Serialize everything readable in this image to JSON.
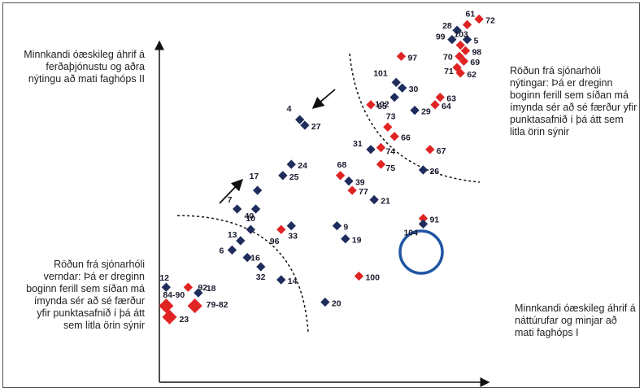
{
  "chart_data": {
    "type": "scatter",
    "annotations": {
      "top_left": "Minnkandi óæskileg áhrif á ferðaþjónustu og aðra nýtingu að mati faghóps II",
      "top_right": "Röðun frá sjónarhóli nýtingar: Þá er dreginn boginn ferill sem síðan má ímynda sér að sé færður yfir punktasafnið í þá átt sem litla örin sýnir",
      "bottom_left": "Röðun frá sjónarhóli verndar: Þá er dreginn boginn ferill sem síðan má ímynda sér að sé færður yfir punktasafnið í þá átt sem litla örin sýnir",
      "bottom_right": "Minnkandi óæskileg áhrif á náttúrufar og minjar að mati faghóps I"
    },
    "series_colors": {
      "blue": "#1f2d5c",
      "red": "#e02424"
    },
    "points": [
      {
        "label": "72",
        "color": "red",
        "x": 0.945,
        "y": 0.975
      },
      {
        "label": "61",
        "color": "red",
        "x": 0.91,
        "y": 0.96
      },
      {
        "label": "28",
        "color": "blue",
        "x": 0.88,
        "y": 0.945
      },
      {
        "label": "5",
        "color": "blue",
        "x": 0.91,
        "y": 0.92
      },
      {
        "label": "99",
        "color": "blue",
        "x": 0.865,
        "y": 0.92
      },
      {
        "label": "103",
        "color": "red",
        "x": 0.89,
        "y": 0.905
      },
      {
        "label": "98",
        "color": "red",
        "x": 0.905,
        "y": 0.89
      },
      {
        "label": "97",
        "color": "red",
        "x": 0.715,
        "y": 0.875
      },
      {
        "label": "70",
        "color": "red",
        "x": 0.887,
        "y": 0.875
      },
      {
        "label": "69",
        "color": "red",
        "x": 0.9,
        "y": 0.862
      },
      {
        "label": "71",
        "color": "red",
        "x": 0.88,
        "y": 0.845
      },
      {
        "label": "62",
        "color": "red",
        "x": 0.89,
        "y": 0.83
      },
      {
        "label": "101",
        "color": "blue",
        "x": 0.7,
        "y": 0.805
      },
      {
        "label": "30",
        "color": "blue",
        "x": 0.718,
        "y": 0.79
      },
      {
        "label": "102",
        "color": "blue",
        "x": 0.695,
        "y": 0.765
      },
      {
        "label": "63",
        "color": "red",
        "x": 0.83,
        "y": 0.765
      },
      {
        "label": "65",
        "color": "red",
        "x": 0.625,
        "y": 0.745
      },
      {
        "label": "64",
        "color": "red",
        "x": 0.815,
        "y": 0.745
      },
      {
        "label": "29",
        "color": "blue",
        "x": 0.755,
        "y": 0.73
      },
      {
        "label": "4",
        "color": "blue",
        "x": 0.415,
        "y": 0.705
      },
      {
        "label": "27",
        "color": "blue",
        "x": 0.43,
        "y": 0.69
      },
      {
        "label": "73",
        "color": "red",
        "x": 0.675,
        "y": 0.685
      },
      {
        "label": "66",
        "color": "red",
        "x": 0.695,
        "y": 0.66
      },
      {
        "label": "31",
        "color": "blue",
        "x": 0.625,
        "y": 0.625
      },
      {
        "label": "74",
        "color": "red",
        "x": 0.655,
        "y": 0.63
      },
      {
        "label": "67",
        "color": "red",
        "x": 0.8,
        "y": 0.625
      },
      {
        "label": "75",
        "color": "red",
        "x": 0.655,
        "y": 0.585
      },
      {
        "label": "24",
        "color": "blue",
        "x": 0.39,
        "y": 0.585
      },
      {
        "label": "68",
        "color": "red",
        "x": 0.535,
        "y": 0.555
      },
      {
        "label": "26",
        "color": "blue",
        "x": 0.78,
        "y": 0.57
      },
      {
        "label": "25",
        "color": "blue",
        "x": 0.365,
        "y": 0.555
      },
      {
        "label": "39",
        "color": "blue",
        "x": 0.56,
        "y": 0.54
      },
      {
        "label": "77",
        "color": "red",
        "x": 0.57,
        "y": 0.515
      },
      {
        "label": "17",
        "color": "blue",
        "x": 0.29,
        "y": 0.515
      },
      {
        "label": "21",
        "color": "blue",
        "x": 0.635,
        "y": 0.49
      },
      {
        "label": "7",
        "color": "blue",
        "x": 0.23,
        "y": 0.465
      },
      {
        "label": "40",
        "color": "blue",
        "x": 0.285,
        "y": 0.465
      },
      {
        "label": "91",
        "color": "red",
        "x": 0.78,
        "y": 0.44
      },
      {
        "label": "104",
        "color": "blue",
        "x": 0.78,
        "y": 0.425
      },
      {
        "label": "9",
        "color": "blue",
        "x": 0.525,
        "y": 0.42
      },
      {
        "label": "33",
        "color": "blue",
        "x": 0.39,
        "y": 0.42
      },
      {
        "label": "10",
        "color": "blue",
        "x": 0.27,
        "y": 0.41
      },
      {
        "label": "96",
        "color": "red",
        "x": 0.36,
        "y": 0.41
      },
      {
        "label": "19",
        "color": "blue",
        "x": 0.55,
        "y": 0.385
      },
      {
        "label": "13",
        "color": "blue",
        "x": 0.24,
        "y": 0.38
      },
      {
        "label": "6",
        "color": "blue",
        "x": 0.215,
        "y": 0.355
      },
      {
        "label": "16",
        "color": "blue",
        "x": 0.26,
        "y": 0.335
      },
      {
        "label": "32",
        "color": "blue",
        "x": 0.3,
        "y": 0.31
      },
      {
        "label": "100",
        "color": "red",
        "x": 0.59,
        "y": 0.285
      },
      {
        "label": "14",
        "color": "blue",
        "x": 0.36,
        "y": 0.275
      },
      {
        "label": "12",
        "color": "blue",
        "x": 0.02,
        "y": 0.255
      },
      {
        "label": "92",
        "color": "red",
        "x": 0.085,
        "y": 0.255
      },
      {
        "label": "18",
        "color": "blue",
        "x": 0.115,
        "y": 0.24
      },
      {
        "label": "20",
        "color": "blue",
        "x": 0.49,
        "y": 0.215
      },
      {
        "label": "79-82",
        "color": "red",
        "x": 0.105,
        "y": 0.205
      },
      {
        "label": "84-90",
        "color": "red",
        "x": 0.02,
        "y": 0.205
      },
      {
        "label": "23",
        "color": "red",
        "x": 0.03,
        "y": 0.175
      }
    ]
  }
}
